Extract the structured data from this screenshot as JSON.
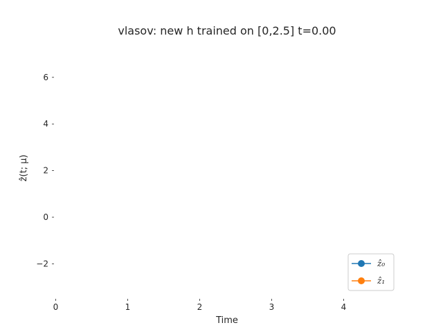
{
  "chart_data": {
    "type": "line",
    "title": "vlasov: new h trained on [0,2.5] t=0.00",
    "xlabel": "Time",
    "ylabel": "ẑ(t; μ)",
    "xlim": [
      -0.1,
      4.9
    ],
    "ylim": [
      -3.5,
      7.3
    ],
    "xticks": [
      0,
      1,
      2,
      3,
      4
    ],
    "xtick_labels": [
      "0",
      "1",
      "2",
      "3",
      "4"
    ],
    "yticks": [
      -2,
      0,
      2,
      4,
      6
    ],
    "ytick_labels": [
      "−2",
      "0",
      "2",
      "4",
      "6"
    ],
    "grid": false,
    "legend_position": "lower-right",
    "series": [
      {
        "name": "ẑ₀",
        "color": "#1f77b4",
        "marker": "circle",
        "points": []
      },
      {
        "name": "ẑ₁",
        "color": "#ff7f0e",
        "marker": "circle",
        "points": []
      }
    ]
  }
}
